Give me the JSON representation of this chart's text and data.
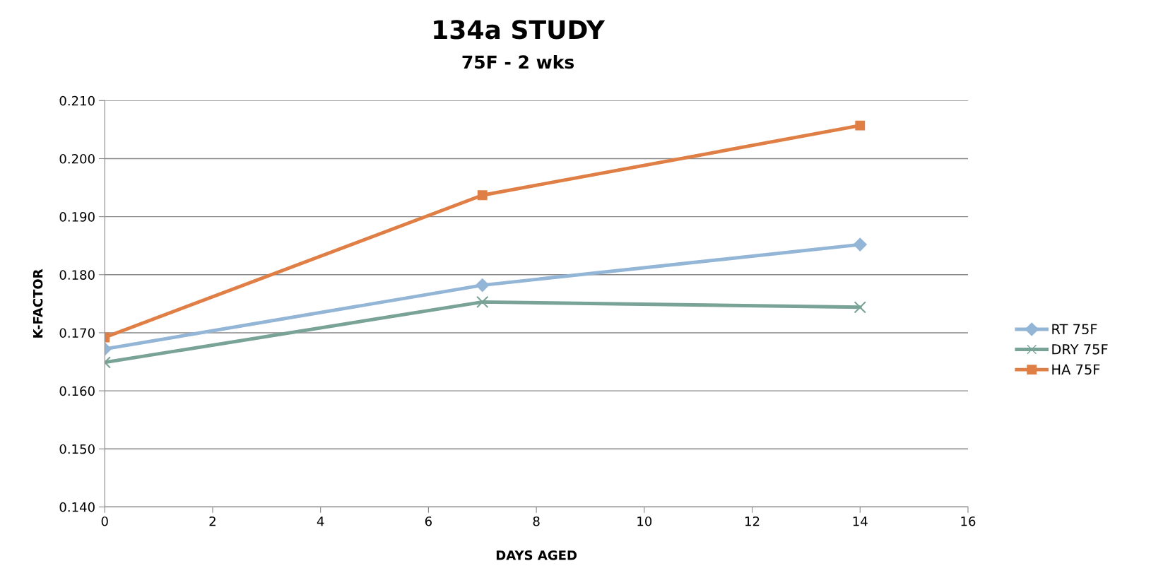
{
  "chart_data": {
    "type": "line",
    "title": "134a STUDY",
    "subtitle": "75F - 2 wks",
    "xlabel": "DAYS AGED",
    "ylabel": "K-FACTOR",
    "x": [
      0,
      7,
      14
    ],
    "series": [
      {
        "name": "RT 75F",
        "color": "#93b5d6",
        "marker": "diamond",
        "values": [
          0.1672,
          0.1782,
          0.1852
        ]
      },
      {
        "name": "DRY 75F",
        "color": "#7aa397",
        "marker": "cross",
        "values": [
          0.1649,
          0.1753,
          0.1744
        ]
      },
      {
        "name": "HA 75F",
        "color": "#e07f45",
        "marker": "square",
        "values": [
          0.1692,
          0.1937,
          0.2057
        ]
      }
    ],
    "xlim": [
      0,
      16
    ],
    "xticks": [
      0,
      2,
      4,
      6,
      8,
      10,
      12,
      14,
      16
    ],
    "ylim": [
      0.14,
      0.21
    ],
    "yticks": [
      {
        "value": 0.14,
        "label": "0.140"
      },
      {
        "value": 0.15,
        "label": "0.150"
      },
      {
        "value": 0.16,
        "label": "0.160"
      },
      {
        "value": 0.17,
        "label": "0.170"
      },
      {
        "value": 0.18,
        "label": "0.180"
      },
      {
        "value": 0.19,
        "label": "0.190"
      },
      {
        "value": 0.2,
        "label": "0.200"
      },
      {
        "value": 0.21,
        "label": "0.210"
      }
    ],
    "grid": "y",
    "legend": "right"
  }
}
